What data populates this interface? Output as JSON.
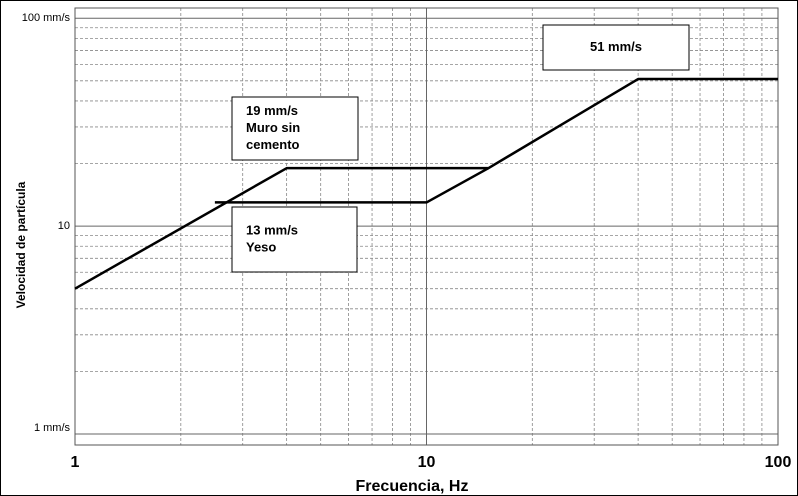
{
  "chart_data": {
    "type": "line",
    "x_label": "Frecuencia, Hz",
    "y_label": "Velocidad de partícula",
    "log_x": true,
    "log_y": true,
    "grid": true,
    "xlim": [
      1,
      100
    ],
    "ylim": [
      0.885,
      112
    ],
    "xticks": [
      1,
      10,
      100
    ],
    "yticks": [
      {
        "value": 1,
        "label": "1 mm/s"
      },
      {
        "value": 10,
        "label": "10"
      },
      {
        "value": 100,
        "label": "100  mm/s"
      }
    ],
    "xminor": [
      2,
      3,
      4,
      5,
      6,
      7,
      8,
      9,
      20,
      30,
      40,
      50,
      60,
      70,
      80,
      90
    ],
    "yminor": [
      2,
      3,
      4,
      5,
      6,
      7,
      8,
      9,
      20,
      30,
      40,
      50,
      60,
      70,
      80,
      90
    ],
    "series": [
      {
        "color": "#000000",
        "x": [
          1,
          4,
          15,
          40,
          100
        ],
        "values": [
          5,
          19,
          19,
          51,
          51
        ]
      },
      {
        "color": "#000000",
        "x": [
          2.5,
          10,
          15
        ],
        "values": [
          13,
          13,
          19
        ]
      }
    ],
    "annotations": [
      {
        "lines": [
          "51 mm/s"
        ]
      },
      {
        "lines": [
          "19 mm/s",
          "Muro sin",
          "cemento"
        ]
      },
      {
        "lines": [
          "13 mm/s",
          "Yeso"
        ]
      }
    ]
  }
}
